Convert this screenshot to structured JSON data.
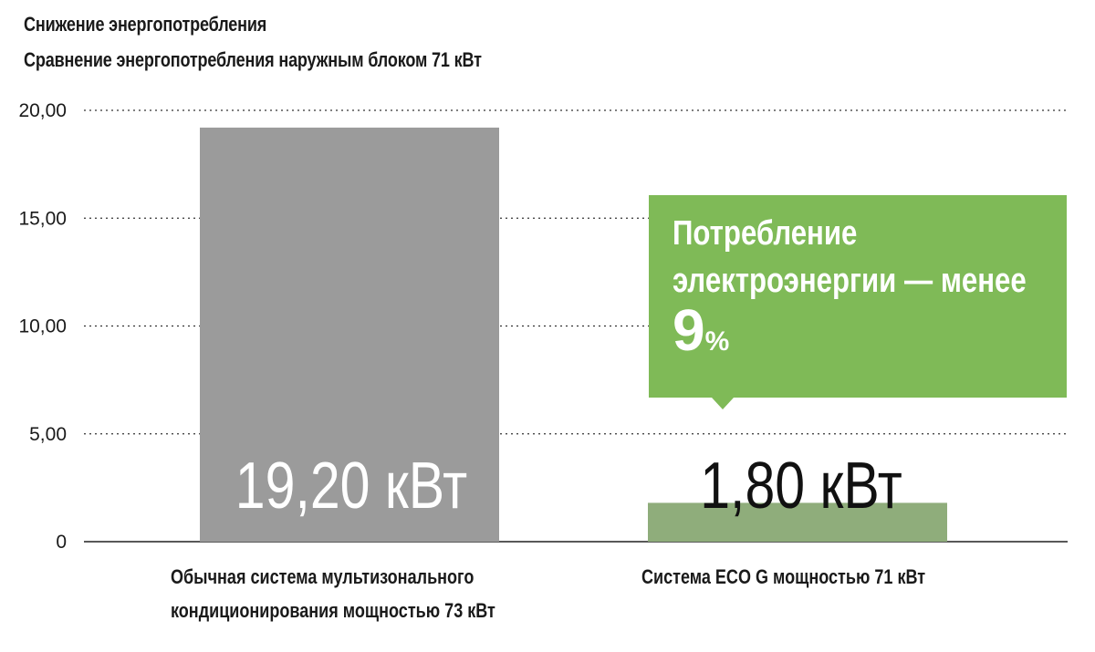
{
  "chart_data": {
    "type": "bar",
    "title": "Снижение энергопотребления",
    "subtitle": "Сравнение энергопотребления наружным блоком 71 кВт",
    "categories": [
      [
        "Обычная система мультизонального",
        "кондиционирования мощностью 73 кВт"
      ],
      [
        "Система ECO G мощностью 71 кВт"
      ]
    ],
    "values": [
      19.2,
      1.8
    ],
    "value_labels": [
      "19,20 кВт",
      "1,80 кВт"
    ],
    "bar_colors": [
      "#9b9b9b",
      "#8fad7b"
    ],
    "value_label_colors": [
      "#ffffff",
      "#111111"
    ],
    "ylim": [
      0,
      20
    ],
    "yticks": [
      0,
      5,
      10,
      15,
      20
    ],
    "ytick_labels": [
      "0",
      "5,00",
      "10,00",
      "15,00",
      "20,00"
    ],
    "grid": true,
    "callout": {
      "line1": "Потребление",
      "line2": "электроэнергии — менее",
      "percent_number": "9",
      "percent_sign": "%",
      "color": "#7fba57"
    }
  }
}
